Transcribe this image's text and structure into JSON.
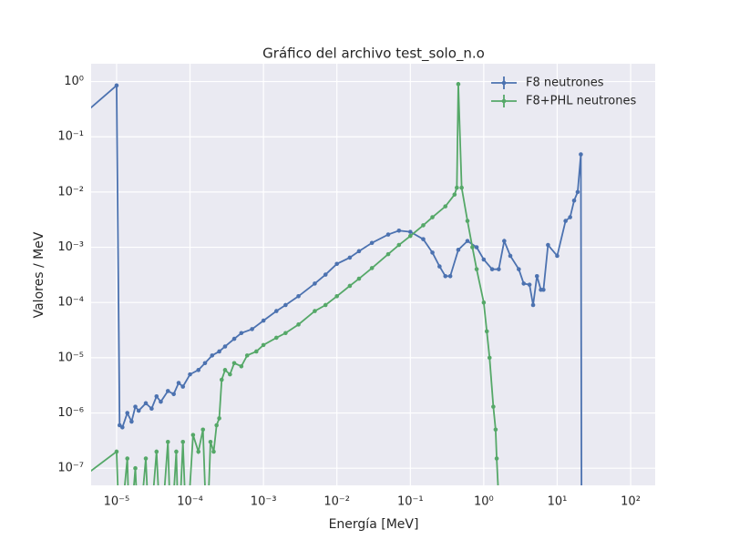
{
  "chart_data": {
    "type": "line",
    "title": "Gráfico del archivo test_solo_n.o",
    "xlabel": "Energía [MeV]",
    "ylabel": "Valores / MeV",
    "xscale": "log",
    "yscale": "log",
    "grid": true,
    "legend": "upper right",
    "xlim": [
      4.5e-06,
      216
    ],
    "ylim": [
      4.9e-08,
      2.1
    ],
    "xticks": [
      {
        "value": 1e-05,
        "label": "10⁻⁵"
      },
      {
        "value": 0.0001,
        "label": "10⁻⁴"
      },
      {
        "value": 0.001,
        "label": "10⁻³"
      },
      {
        "value": 0.01,
        "label": "10⁻²"
      },
      {
        "value": 0.1,
        "label": "10⁻¹"
      },
      {
        "value": 1,
        "label": "10⁰"
      },
      {
        "value": 10,
        "label": "10¹"
      },
      {
        "value": 100,
        "label": "10²"
      }
    ],
    "yticks": [
      {
        "value": 1e-07,
        "label": "10⁻⁷"
      },
      {
        "value": 1e-06,
        "label": "10⁻⁶"
      },
      {
        "value": 1e-05,
        "label": "10⁻⁵"
      },
      {
        "value": 0.0001,
        "label": "10⁻⁴"
      },
      {
        "value": 0.001,
        "label": "10⁻³"
      },
      {
        "value": 0.01,
        "label": "10⁻²"
      },
      {
        "value": 0.1,
        "label": "10⁻¹"
      },
      {
        "value": 1,
        "label": "10⁰"
      }
    ],
    "series": [
      {
        "name": "F8 neutrones",
        "color": "#4c72b0",
        "x": [
          1e-06,
          1e-05,
          1.1e-05,
          1.2e-05,
          1.4e-05,
          1.6e-05,
          1.8e-05,
          2e-05,
          2.5e-05,
          3e-05,
          3.5e-05,
          4e-05,
          5e-05,
          6e-05,
          7e-05,
          8e-05,
          0.0001,
          0.00013,
          0.00016,
          0.0002,
          0.00025,
          0.0003,
          0.0004,
          0.0005,
          0.0007,
          0.001,
          0.0015,
          0.002,
          0.003,
          0.005,
          0.007,
          0.01,
          0.015,
          0.02,
          0.03,
          0.05,
          0.07,
          0.1,
          0.15,
          0.2,
          0.25,
          0.3,
          0.35,
          0.45,
          0.6,
          0.8,
          1,
          1.3,
          1.6,
          1.9,
          2.3,
          3,
          3.5,
          4.2,
          4.7,
          5.3,
          6,
          6.5,
          7.5,
          10,
          13,
          15,
          17,
          19,
          21,
          21.5
        ],
        "values": [
          0.06,
          0.85,
          6e-07,
          5.5e-07,
          1e-06,
          7e-07,
          1.3e-06,
          1.1e-06,
          1.5e-06,
          1.2e-06,
          2e-06,
          1.6e-06,
          2.5e-06,
          2.2e-06,
          3.5e-06,
          3e-06,
          5e-06,
          6e-06,
          8e-06,
          1.1e-05,
          1.3e-05,
          1.6e-05,
          2.2e-05,
          2.8e-05,
          3.3e-05,
          4.7e-05,
          7e-05,
          9e-05,
          0.00013,
          0.00022,
          0.00032,
          0.0005,
          0.00065,
          0.00085,
          0.0012,
          0.0017,
          0.002,
          0.0019,
          0.0014,
          0.0008,
          0.00045,
          0.0003,
          0.0003,
          0.0009,
          0.0013,
          0.001,
          0.0006,
          0.0004,
          0.0004,
          0.0013,
          0.0007,
          0.0004,
          0.00022,
          0.00021,
          9e-05,
          0.0003,
          0.00017,
          0.00017,
          0.0011,
          0.0007,
          0.003,
          0.0035,
          0.007,
          0.01,
          0.048,
          0
        ]
      },
      {
        "name": "F8+PHL neutrones",
        "color": "#55a868",
        "x": [
          1e-06,
          1e-05,
          1.1e-05,
          1.4e-05,
          1.5e-05,
          1.8e-05,
          2e-05,
          2.5e-05,
          2.8e-05,
          3.5e-05,
          4e-05,
          5e-05,
          5.5e-05,
          6.5e-05,
          7e-05,
          8e-05,
          9e-05,
          0.00011,
          0.00013,
          0.00015,
          0.00017,
          0.00019,
          0.00021,
          0.00023,
          0.00025,
          0.00027,
          0.0003,
          0.00035,
          0.0004,
          0.0005,
          0.0006,
          0.0008,
          0.001,
          0.0015,
          0.002,
          0.003,
          0.005,
          0.007,
          0.01,
          0.015,
          0.02,
          0.03,
          0.05,
          0.07,
          0.1,
          0.15,
          0.2,
          0.3,
          0.4,
          0.43,
          0.45,
          0.5,
          0.6,
          0.7,
          0.8,
          1.0,
          1.1,
          1.2,
          1.35,
          1.45,
          1.5,
          1.7
        ],
        "values": [
          2e-08,
          2e-07,
          0,
          1.5e-07,
          0,
          1e-07,
          0,
          1.5e-07,
          0,
          2e-07,
          0,
          3e-07,
          0,
          2e-07,
          0,
          3e-07,
          0,
          4e-07,
          2e-07,
          5e-07,
          0,
          3e-07,
          2e-07,
          6e-07,
          8e-07,
          4e-06,
          6e-06,
          5e-06,
          8e-06,
          7e-06,
          1.1e-05,
          1.3e-05,
          1.7e-05,
          2.3e-05,
          2.8e-05,
          4e-05,
          7e-05,
          9e-05,
          0.00013,
          0.0002,
          0.00027,
          0.00042,
          0.00075,
          0.0011,
          0.0016,
          0.0025,
          0.0035,
          0.0055,
          0.009,
          0.012,
          0.9,
          0.012,
          0.003,
          0.001,
          0.0004,
          0.0001,
          3e-05,
          1e-05,
          1.3e-06,
          5e-07,
          1.5e-07,
          0
        ]
      }
    ]
  }
}
